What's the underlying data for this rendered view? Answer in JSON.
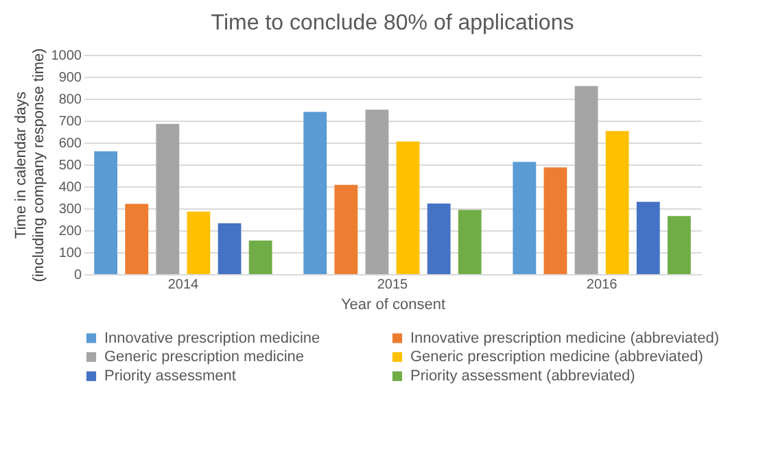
{
  "chart_data": {
    "type": "bar",
    "title": "Time to conclude 80% of applications",
    "xlabel": "Year of consent",
    "ylabel": "Time in calendar days\n(including company response time)",
    "categories": [
      "2014",
      "2015",
      "2016"
    ],
    "series": [
      {
        "name": "Innovative prescription medicine",
        "color": "#5b9bd5",
        "values": [
          560,
          740,
          512
        ]
      },
      {
        "name": "Innovative prescription medicine (abbreviated)",
        "color": "#ed7d31",
        "values": [
          320,
          407,
          487
        ]
      },
      {
        "name": "Generic prescription medicine",
        "color": "#a5a5a5",
        "values": [
          685,
          750,
          858
        ]
      },
      {
        "name": "Generic prescription medicine (abbreviated)",
        "color": "#ffc000",
        "values": [
          285,
          605,
          652
        ]
      },
      {
        "name": "Priority assessment",
        "color": "#4472c4",
        "values": [
          232,
          322,
          330
        ]
      },
      {
        "name": "Priority assessment (abbreviated)",
        "color": "#70ad47",
        "values": [
          153,
          293,
          265
        ]
      }
    ],
    "ylim": [
      0,
      1000
    ],
    "yticks": [
      0,
      100,
      200,
      300,
      400,
      500,
      600,
      700,
      800,
      900,
      1000
    ],
    "grid": "y",
    "legend": "bottom"
  }
}
